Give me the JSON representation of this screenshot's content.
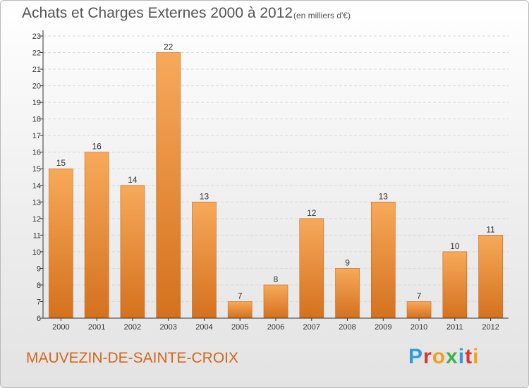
{
  "header": {
    "title": "Achats et Charges Externes 2000 à 2012",
    "unit": "(en milliers d'€)"
  },
  "footer": {
    "commune": "MAUVEZIN-DE-SAINTE-CROIX",
    "logo_text": "Proxiti"
  },
  "colors": {
    "bar_light": "#f7a95a",
    "bar_dark": "#d4711e",
    "accent": "#d4661c",
    "grid": "#d9d9d9",
    "axis": "#333333"
  },
  "logo_colors": [
    "#2e9be0",
    "#e0342e",
    "#f0a020",
    "#3cb44a",
    "#2e9be0",
    "#e0342e",
    "#f0a020"
  ],
  "chart_data": {
    "type": "bar",
    "title": "Achats et Charges Externes 2000 à 2012",
    "xlabel": "",
    "ylabel": "",
    "categories": [
      "2000",
      "2001",
      "2002",
      "2003",
      "2004",
      "2005",
      "2006",
      "2007",
      "2008",
      "2009",
      "2010",
      "2011",
      "2012"
    ],
    "values": [
      15,
      16,
      14,
      22,
      13,
      7,
      8,
      12,
      9,
      13,
      7,
      10,
      11
    ],
    "ylim": [
      6,
      23
    ],
    "yticks": [
      6,
      7,
      8,
      9,
      10,
      11,
      12,
      13,
      14,
      15,
      16,
      17,
      18,
      19,
      20,
      21,
      22,
      23
    ],
    "grid": true
  }
}
